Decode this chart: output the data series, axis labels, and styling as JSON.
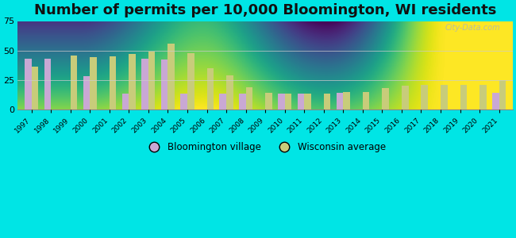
{
  "title": "Number of permits per 10,000 Bloomington, WI residents",
  "years": [
    1997,
    1998,
    1999,
    2000,
    2001,
    2002,
    2003,
    2004,
    2005,
    2006,
    2007,
    2008,
    2009,
    2010,
    2011,
    2012,
    2013,
    2014,
    2015,
    2016,
    2017,
    2018,
    2019,
    2020,
    2021
  ],
  "bloomington": [
    43,
    43,
    0,
    28,
    0,
    13,
    43,
    42,
    13,
    0,
    13,
    13,
    0,
    13,
    13,
    0,
    14,
    0,
    0,
    0,
    0,
    0,
    0,
    0,
    14
  ],
  "wisconsin": [
    36,
    0,
    46,
    44,
    45,
    47,
    49,
    56,
    48,
    35,
    29,
    19,
    14,
    13,
    13,
    13,
    15,
    15,
    18,
    20,
    21,
    21,
    21,
    21,
    25
  ],
  "bloomington_color": "#c9a8d4",
  "wisconsin_color": "#c8cc7a",
  "background_outer": "#00e5e5",
  "background_inner": "#e8f5e2",
  "ylim": [
    0,
    75
  ],
  "yticks": [
    0,
    25,
    50,
    75
  ],
  "title_fontsize": 13,
  "legend_bloomington": "Bloomington village",
  "legend_wisconsin": "Wisconsin average",
  "bar_width": 0.35,
  "grid_color": "#cccccc",
  "watermark_text": "City-Data.com"
}
